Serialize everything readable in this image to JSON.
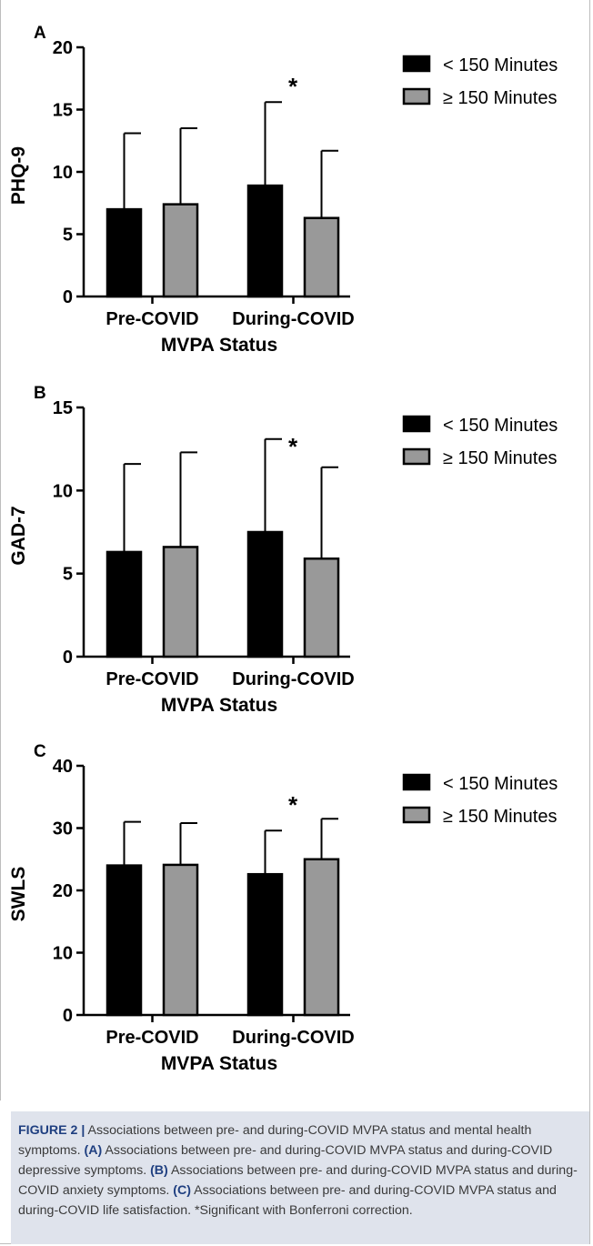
{
  "chart_data": [
    {
      "type": "bar",
      "panel": "A",
      "categories": [
        "Pre-COVID",
        "During-COVID"
      ],
      "series": [
        {
          "name": "< 150 Minutes",
          "values": [
            7.0,
            8.9
          ],
          "errors": [
            6.1,
            6.7
          ]
        },
        {
          "name": "≥ 150 Minutes",
          "values": [
            7.4,
            6.3
          ],
          "errors": [
            6.1,
            5.4
          ]
        }
      ],
      "ylabel": "PHQ-9",
      "xlabel": "MVPA  Status",
      "ylim": [
        0,
        20
      ],
      "yticks": [
        0,
        5,
        10,
        15,
        20
      ],
      "significance_marker": "*",
      "legend_position": "top-right"
    },
    {
      "type": "bar",
      "panel": "B",
      "categories": [
        "Pre-COVID",
        "During-COVID"
      ],
      "series": [
        {
          "name": "< 150 Minutes",
          "values": [
            6.3,
            7.5
          ],
          "errors": [
            5.3,
            5.6
          ]
        },
        {
          "name": "≥ 150 Minutes",
          "values": [
            6.6,
            5.9
          ],
          "errors": [
            5.7,
            5.5
          ]
        }
      ],
      "ylabel": "GAD-7",
      "xlabel": "MVPA  Status",
      "ylim": [
        0,
        15
      ],
      "yticks": [
        0,
        5,
        10,
        15
      ],
      "significance_marker": "*",
      "legend_position": "top-right"
    },
    {
      "type": "bar",
      "panel": "C",
      "categories": [
        "Pre-COVID",
        "During-COVID"
      ],
      "series": [
        {
          "name": "< 150 Minutes",
          "values": [
            24.0,
            22.6
          ],
          "errors": [
            7.0,
            7.0
          ]
        },
        {
          "name": "≥ 150 Minutes",
          "values": [
            24.1,
            25.0
          ],
          "errors": [
            6.7,
            6.5
          ]
        }
      ],
      "ylabel": "SWLS",
      "xlabel": "MVPA  Status",
      "ylim": [
        0,
        40
      ],
      "yticks": [
        0,
        10,
        20,
        30,
        40
      ],
      "significance_marker": "*",
      "legend_position": "top-right"
    }
  ],
  "colors": {
    "series_0": "#000000",
    "series_1": "#999999",
    "caption_bg": "#dfe3ec",
    "caption_label": "#1f3f80"
  },
  "caption": {
    "figure_label": "FIGURE 2 |",
    "text_1": " Associations between pre- and during-COVID MVPA status and mental health symptoms. ",
    "a_label": "(A)",
    "text_a": " Associations between pre- and during-COVID MVPA status and during-COVID depressive symptoms. ",
    "b_label": "(B)",
    "text_b": " Associations between pre- and during-COVID MVPA status and during-COVID anxiety symptoms. ",
    "c_label": "(C)",
    "text_c": " Associations between pre- and during-COVID MVPA status and during-COVID life satisfaction. *Significant with Bonferroni correction."
  }
}
